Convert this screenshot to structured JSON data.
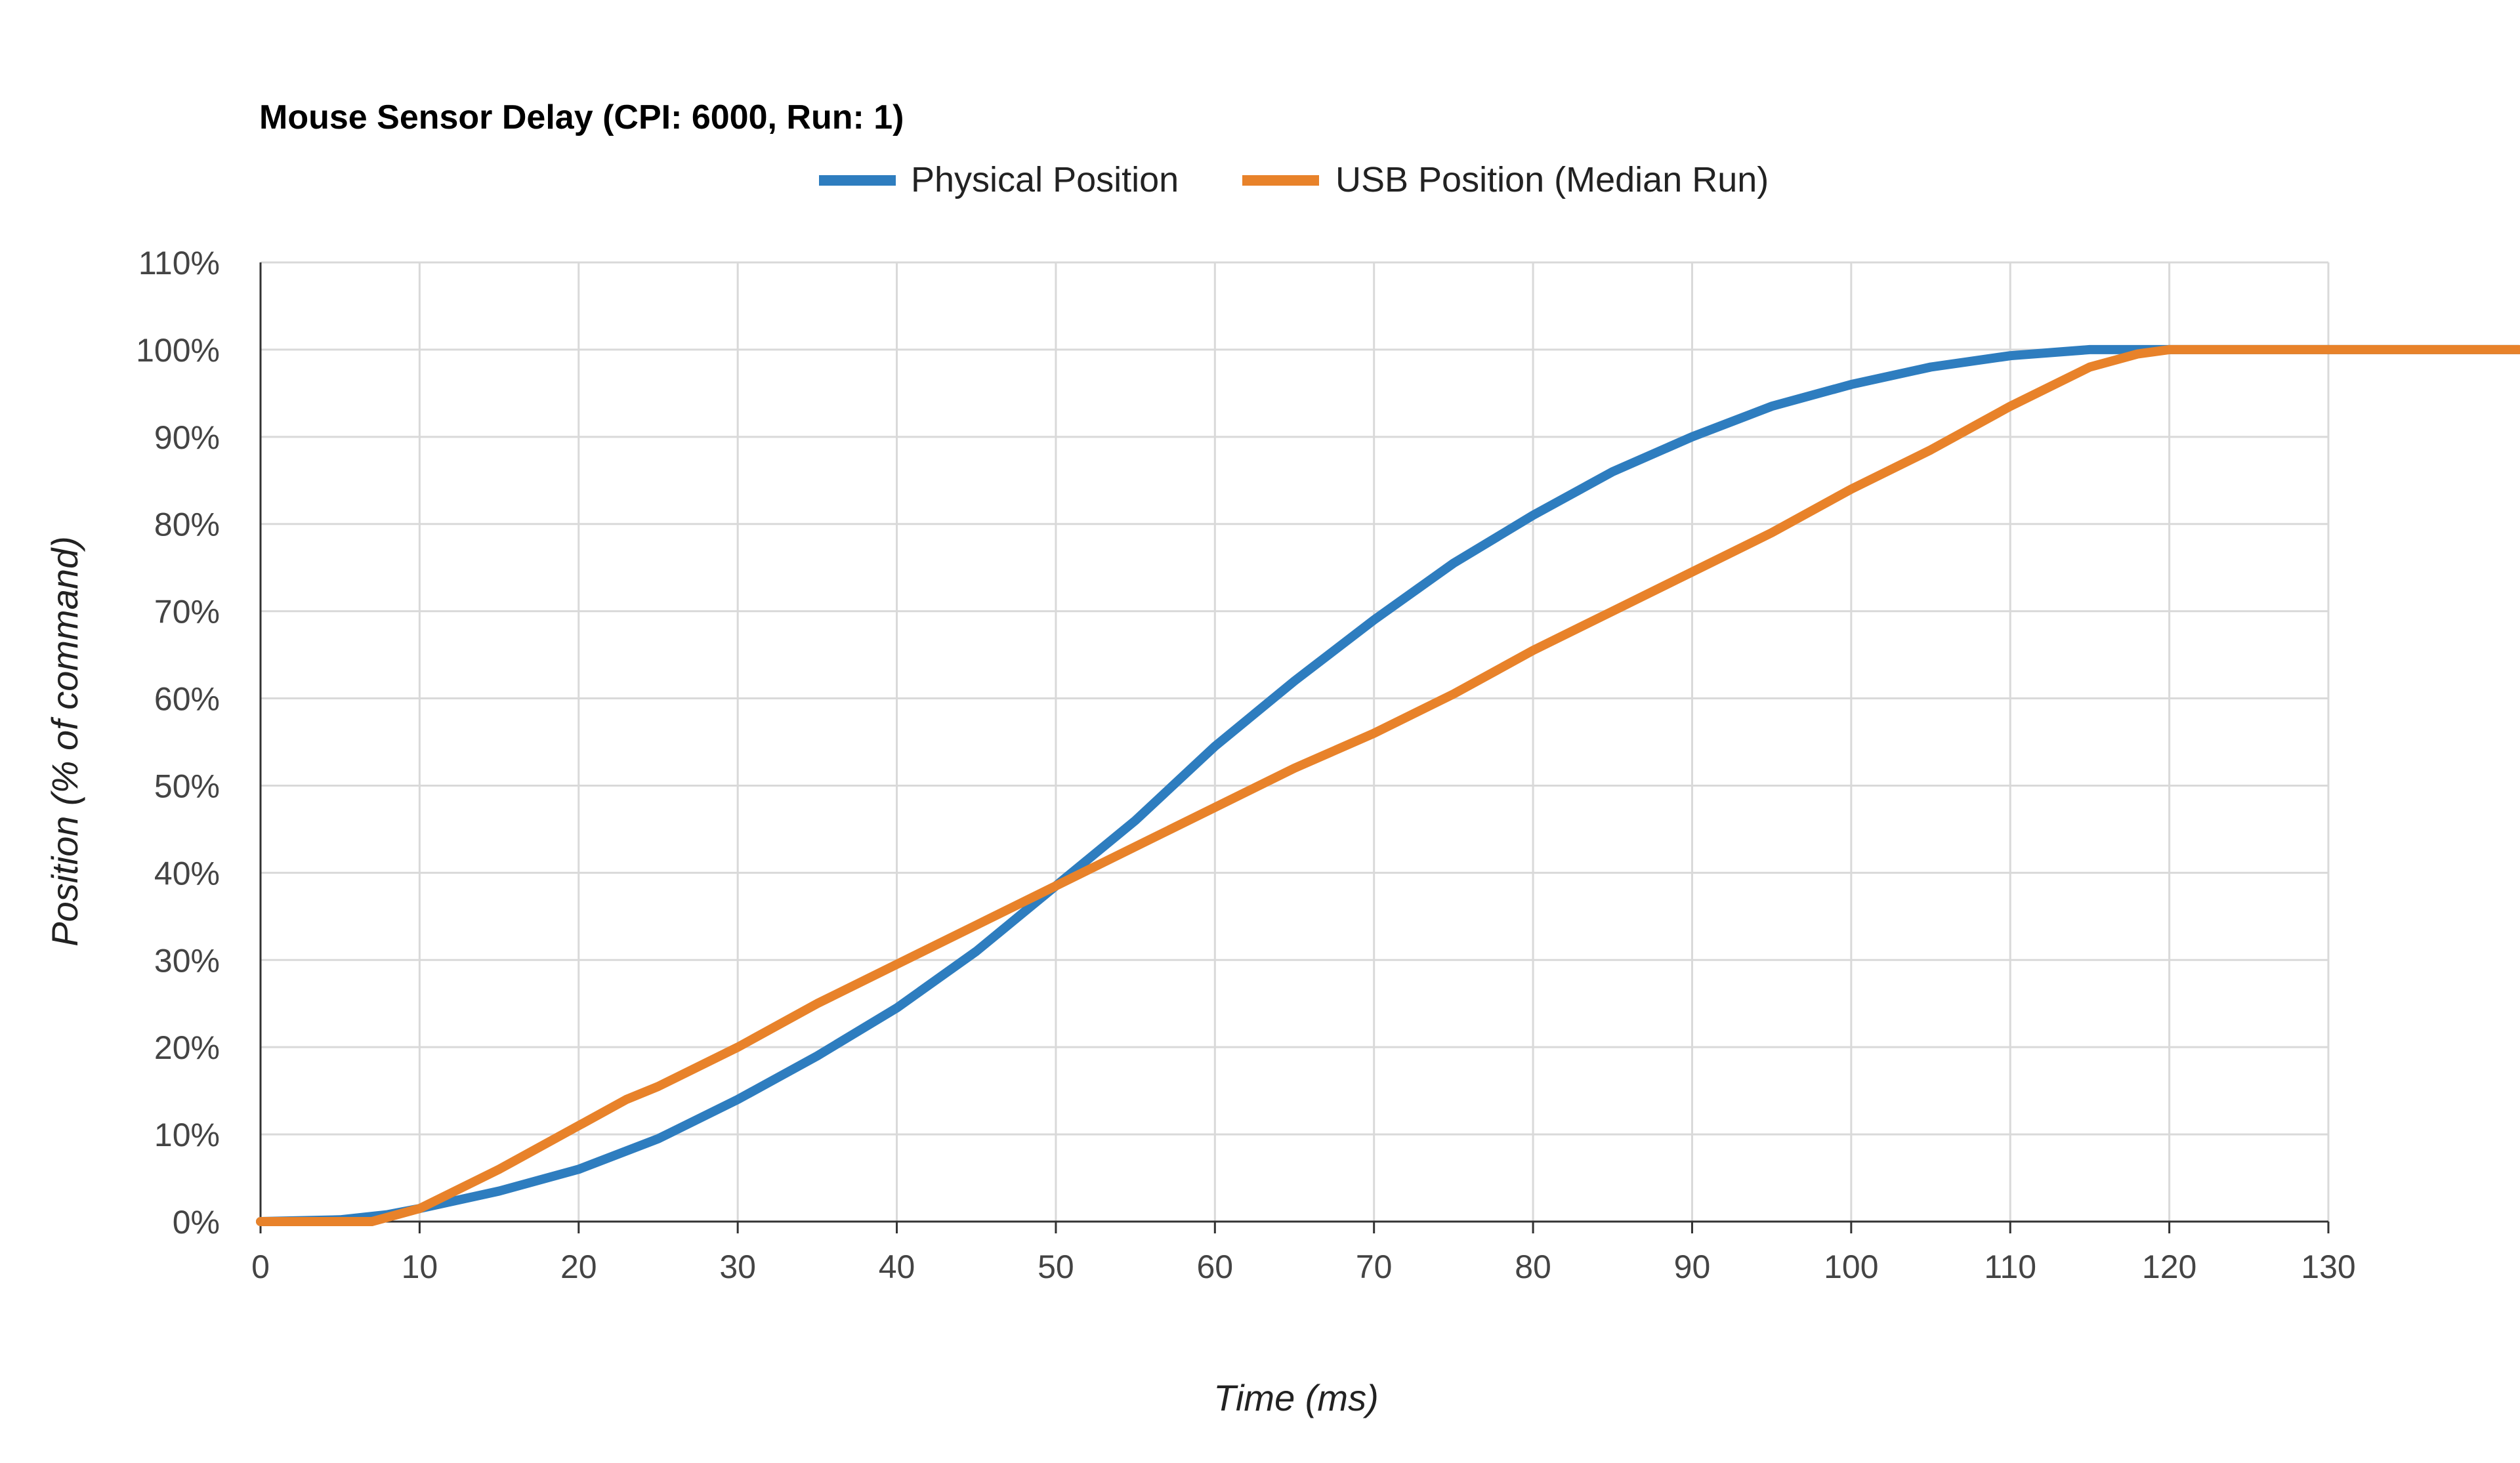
{
  "chart_data": {
    "type": "line",
    "title": "Mouse Sensor Delay (CPI: 6000, Run: 1)",
    "xlabel": "Time (ms)",
    "ylabel": "Position (% of command)",
    "xlim": [
      0,
      130
    ],
    "ylim": [
      0,
      110
    ],
    "x_ticks": [
      "0",
      "10",
      "20",
      "30",
      "40",
      "50",
      "60",
      "70",
      "80",
      "90",
      "100",
      "110",
      "120",
      "130"
    ],
    "y_ticks": [
      "0%",
      "10%",
      "20%",
      "30%",
      "40%",
      "50%",
      "60%",
      "70%",
      "80%",
      "90%",
      "100%",
      "110%"
    ],
    "grid": true,
    "legend_position": "top",
    "series": [
      {
        "name": "Physical Position",
        "color": "#2e7dbf",
        "x": [
          0,
          5,
          8,
          10,
          15,
          20,
          25,
          30,
          35,
          40,
          45,
          50,
          55,
          60,
          65,
          70,
          75,
          80,
          85,
          90,
          95,
          100,
          105,
          110,
          115,
          120,
          125,
          130,
          142
        ],
        "y": [
          0,
          0.2,
          0.8,
          1.5,
          3.5,
          6,
          9.5,
          14,
          19,
          24.5,
          31,
          38.5,
          46,
          54.5,
          62,
          69,
          75.5,
          81,
          86,
          90,
          93.5,
          96,
          98,
          99.3,
          100,
          100,
          100,
          100,
          100
        ]
      },
      {
        "name": "USB Position (Median Run)",
        "color": "#e8822a",
        "x": [
          0,
          5,
          7,
          10,
          15,
          20,
          23,
          25,
          30,
          35,
          40,
          45,
          50,
          55,
          60,
          65,
          70,
          75,
          80,
          85,
          90,
          95,
          100,
          105,
          110,
          115,
          118,
          120,
          125,
          130,
          142
        ],
        "y": [
          0,
          0,
          0,
          1.5,
          6,
          11,
          14,
          15.5,
          20,
          25,
          29.5,
          34,
          38.5,
          43,
          47.5,
          52,
          56,
          60.5,
          65.5,
          70,
          74.5,
          79,
          84,
          88.5,
          93.5,
          98,
          99.5,
          100,
          100,
          100,
          100
        ]
      }
    ]
  }
}
